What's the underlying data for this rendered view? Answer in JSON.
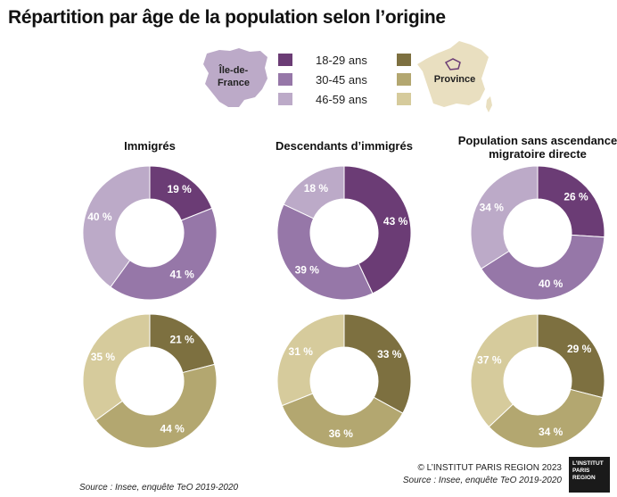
{
  "title": "Répartition par âge de la population selon l’origine",
  "legend": {
    "idf_label_line1": "Île-de-",
    "idf_label_line2": "France",
    "province_label": "Province",
    "age_groups": [
      "18-29 ans",
      "30-45 ans",
      "46-59 ans"
    ],
    "idf_colors": [
      "#6b3c75",
      "#9677a8",
      "#bcaac8"
    ],
    "province_colors": [
      "#7d7040",
      "#b3a770",
      "#d6cb9c"
    ]
  },
  "columns": [
    {
      "title_lines": [
        "Immigrés"
      ]
    },
    {
      "title_lines": [
        "Descendants d’immigrés"
      ]
    },
    {
      "title_lines": [
        "Population sans ascendance",
        "migratoire directe"
      ]
    }
  ],
  "chart_data": [
    {
      "type": "donut",
      "region": "Île-de-France",
      "group": "Immigrés",
      "categories": [
        "18-29 ans",
        "30-45 ans",
        "46-59 ans"
      ],
      "values": [
        19,
        41,
        40
      ],
      "labels": [
        "19 %",
        "41 %",
        "40 %"
      ]
    },
    {
      "type": "donut",
      "region": "Île-de-France",
      "group": "Descendants d’immigrés",
      "categories": [
        "18-29 ans",
        "30-45 ans",
        "46-59 ans"
      ],
      "values": [
        43,
        39,
        18
      ],
      "labels": [
        "43 %",
        "39 %",
        "18 %"
      ]
    },
    {
      "type": "donut",
      "region": "Île-de-France",
      "group": "Population sans ascendance migratoire directe",
      "categories": [
        "18-29 ans",
        "30-45 ans",
        "46-59 ans"
      ],
      "values": [
        26,
        40,
        34
      ],
      "labels": [
        "26 %",
        "40 %",
        "34 %"
      ]
    },
    {
      "type": "donut",
      "region": "Province",
      "group": "Immigrés",
      "categories": [
        "18-29 ans",
        "30-45 ans",
        "46-59 ans"
      ],
      "values": [
        21,
        44,
        35
      ],
      "labels": [
        "21 %",
        "44 %",
        "35 %"
      ]
    },
    {
      "type": "donut",
      "region": "Province",
      "group": "Descendants d’immigrés",
      "categories": [
        "18-29 ans",
        "30-45 ans",
        "46-59 ans"
      ],
      "values": [
        33,
        36,
        31
      ],
      "labels": [
        "33 %",
        "36 %",
        "31 %"
      ]
    },
    {
      "type": "donut",
      "region": "Province",
      "group": "Population sans ascendance migratoire directe",
      "categories": [
        "18-29 ans",
        "30-45 ans",
        "46-59 ans"
      ],
      "values": [
        29,
        34,
        37
      ],
      "labels": [
        "29 %",
        "34 %",
        "37 %"
      ]
    }
  ],
  "footer": {
    "copyright": "© L’INSTITUT PARIS REGION 2023",
    "source_right": "Source : Insee, enquête TeO 2019-2020",
    "source_left": "Source : Insee, enquête TeO 2019-2020",
    "logo_lines": [
      "L’INSTITUT",
      "PARIS",
      "REGION"
    ]
  }
}
